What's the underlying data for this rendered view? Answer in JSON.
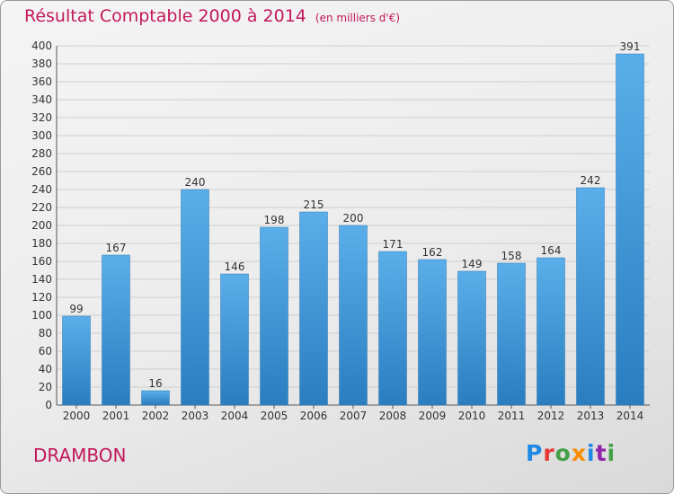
{
  "header": {
    "title": "Résultat Comptable 2000 à 2014",
    "subtitle": "(en milliers d'€)"
  },
  "footer": {
    "commune": "DRAMBON",
    "logo_letters": [
      "P",
      "r",
      "o",
      "x",
      "i",
      "t",
      "i"
    ],
    "logo_colors": [
      "#1e88e5",
      "#e53935",
      "#43a047",
      "#fb8c00",
      "#1e88e5",
      "#8e24aa",
      "#43a047"
    ]
  },
  "colors": {
    "accent": "#c2185b",
    "bar_light": "#5aaee9",
    "bar_dark": "#2a7ec0"
  },
  "chart_data": {
    "type": "bar",
    "categories": [
      "2000",
      "2001",
      "2002",
      "2003",
      "2004",
      "2005",
      "2006",
      "2007",
      "2008",
      "2009",
      "2010",
      "2011",
      "2012",
      "2013",
      "2014"
    ],
    "values": [
      99,
      167,
      16,
      240,
      146,
      198,
      215,
      200,
      171,
      162,
      149,
      158,
      164,
      242,
      391
    ],
    "ylim": [
      0,
      400
    ],
    "ytick_step": 20,
    "grid": true,
    "data_labels": true
  }
}
